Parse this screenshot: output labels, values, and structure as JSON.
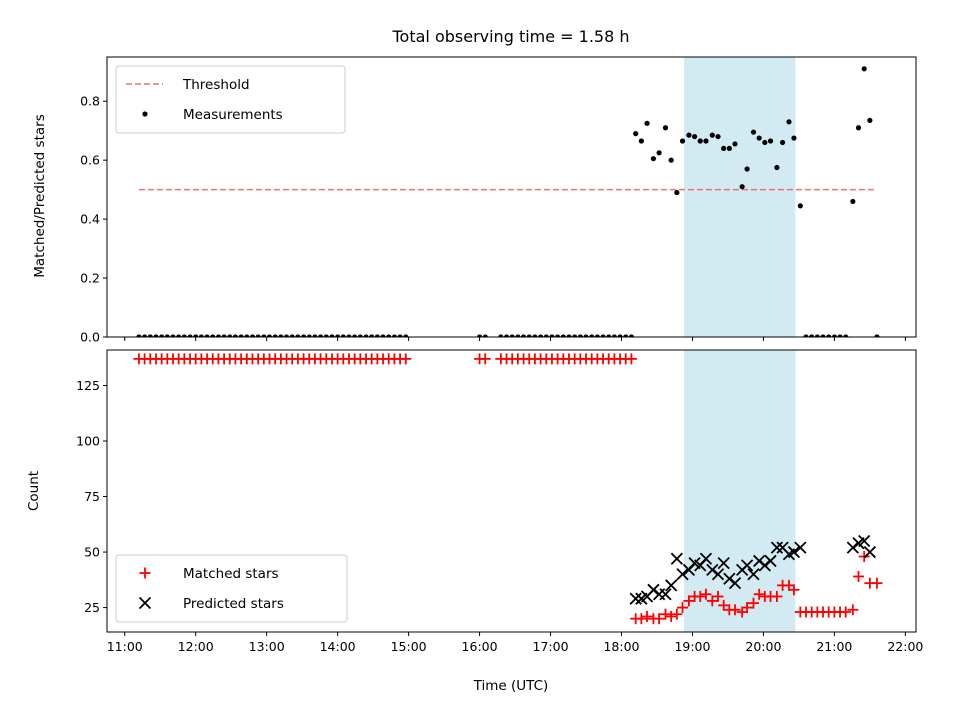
{
  "title": "Total observing time = 1.58 h",
  "xlabel": "Time (UTC)",
  "colors": {
    "threshold": "#f07070",
    "measurement": "#000000",
    "matched": "#ff0000",
    "predicted": "#000000",
    "shade": "#add8e6"
  },
  "chart_data": [
    {
      "type": "scatter",
      "panel": "top",
      "ylabel": "Matched/Predicted stars",
      "xlim": [
        10.75,
        22.15
      ],
      "ylim": [
        0,
        0.95
      ],
      "yticks": [
        0.0,
        0.2,
        0.4,
        0.6,
        0.8
      ],
      "ytick_labels": [
        "0.0",
        "0.2",
        "0.4",
        "0.6",
        "0.8"
      ],
      "xticks": [
        11,
        12,
        13,
        14,
        15,
        16,
        17,
        18,
        19,
        20,
        21,
        22
      ],
      "shaded_interval": [
        18.88,
        20.45
      ],
      "legend_position": "top-left",
      "series": [
        {
          "name": "Threshold",
          "type": "line",
          "style": "dashed",
          "x": [
            11.2,
            21.6
          ],
          "y": [
            0.5,
            0.5
          ]
        },
        {
          "name": "Measurements",
          "type": "scatter",
          "x": [],
          "y": [],
          "points": [
            [
              11.2,
              0
            ],
            [
              11.28,
              0
            ],
            [
              11.36,
              0
            ],
            [
              11.44,
              0
            ],
            [
              11.52,
              0
            ],
            [
              11.6,
              0
            ],
            [
              11.68,
              0
            ],
            [
              11.76,
              0
            ],
            [
              11.84,
              0
            ],
            [
              11.92,
              0
            ],
            [
              12.0,
              0
            ],
            [
              12.08,
              0
            ],
            [
              12.16,
              0
            ],
            [
              12.24,
              0
            ],
            [
              12.32,
              0
            ],
            [
              12.4,
              0
            ],
            [
              12.48,
              0
            ],
            [
              12.56,
              0
            ],
            [
              12.64,
              0
            ],
            [
              12.72,
              0
            ],
            [
              12.8,
              0
            ],
            [
              12.88,
              0
            ],
            [
              12.96,
              0
            ],
            [
              13.04,
              0
            ],
            [
              13.12,
              0
            ],
            [
              13.2,
              0
            ],
            [
              13.28,
              0
            ],
            [
              13.36,
              0
            ],
            [
              13.44,
              0
            ],
            [
              13.52,
              0
            ],
            [
              13.6,
              0
            ],
            [
              13.68,
              0
            ],
            [
              13.76,
              0
            ],
            [
              13.84,
              0
            ],
            [
              13.92,
              0
            ],
            [
              14.0,
              0
            ],
            [
              14.08,
              0
            ],
            [
              14.16,
              0
            ],
            [
              14.24,
              0
            ],
            [
              14.32,
              0
            ],
            [
              14.4,
              0
            ],
            [
              14.48,
              0
            ],
            [
              14.56,
              0
            ],
            [
              14.64,
              0
            ],
            [
              14.72,
              0
            ],
            [
              14.8,
              0
            ],
            [
              14.88,
              0
            ],
            [
              14.96,
              0
            ],
            [
              16.0,
              0
            ],
            [
              16.08,
              0
            ],
            [
              16.3,
              0
            ],
            [
              16.38,
              0
            ],
            [
              16.46,
              0
            ],
            [
              16.54,
              0
            ],
            [
              16.62,
              0
            ],
            [
              16.7,
              0
            ],
            [
              16.78,
              0
            ],
            [
              16.86,
              0
            ],
            [
              16.94,
              0
            ],
            [
              17.02,
              0
            ],
            [
              17.1,
              0
            ],
            [
              17.18,
              0
            ],
            [
              17.26,
              0
            ],
            [
              17.34,
              0
            ],
            [
              17.42,
              0
            ],
            [
              17.5,
              0
            ],
            [
              17.58,
              0
            ],
            [
              17.66,
              0
            ],
            [
              17.74,
              0
            ],
            [
              17.82,
              0
            ],
            [
              17.9,
              0
            ],
            [
              17.98,
              0
            ],
            [
              18.06,
              0
            ],
            [
              18.14,
              0
            ],
            [
              18.2,
              0.69
            ],
            [
              18.28,
              0.665
            ],
            [
              18.36,
              0.725
            ],
            [
              18.45,
              0.605
            ],
            [
              18.53,
              0.625
            ],
            [
              18.62,
              0.71
            ],
            [
              18.7,
              0.6
            ],
            [
              18.78,
              0.49
            ],
            [
              18.86,
              0.665
            ],
            [
              18.95,
              0.685
            ],
            [
              19.03,
              0.68
            ],
            [
              19.11,
              0.665
            ],
            [
              19.19,
              0.665
            ],
            [
              19.28,
              0.685
            ],
            [
              19.36,
              0.68
            ],
            [
              19.44,
              0.64
            ],
            [
              19.52,
              0.64
            ],
            [
              19.6,
              0.655
            ],
            [
              19.7,
              0.51
            ],
            [
              19.77,
              0.57
            ],
            [
              19.86,
              0.695
            ],
            [
              19.94,
              0.675
            ],
            [
              20.02,
              0.66
            ],
            [
              20.1,
              0.665
            ],
            [
              20.19,
              0.575
            ],
            [
              20.27,
              0.66
            ],
            [
              20.36,
              0.73
            ],
            [
              20.43,
              0.675
            ],
            [
              20.52,
              0.445
            ],
            [
              20.6,
              0
            ],
            [
              20.68,
              0
            ],
            [
              20.76,
              0
            ],
            [
              20.84,
              0
            ],
            [
              20.92,
              0
            ],
            [
              21.0,
              0
            ],
            [
              21.08,
              0
            ],
            [
              21.16,
              0
            ],
            [
              21.26,
              0.46
            ],
            [
              21.34,
              0.71
            ],
            [
              21.42,
              0.91
            ],
            [
              21.5,
              0.735
            ],
            [
              21.6,
              0
            ]
          ]
        }
      ]
    },
    {
      "type": "scatter",
      "panel": "bottom",
      "ylabel": "Count",
      "xlabel": "Time (UTC)",
      "xlim": [
        10.75,
        22.15
      ],
      "ylim": [
        14,
        141
      ],
      "yticks": [
        25,
        50,
        75,
        100,
        125
      ],
      "ytick_labels": [
        "25",
        "50",
        "75",
        "100",
        "125"
      ],
      "xticks": [
        11,
        12,
        13,
        14,
        15,
        16,
        17,
        18,
        19,
        20,
        21,
        22
      ],
      "xtick_labels": [
        "11:00",
        "12:00",
        "13:00",
        "14:00",
        "15:00",
        "16:00",
        "17:00",
        "18:00",
        "19:00",
        "20:00",
        "21:00",
        "22:00"
      ],
      "shaded_interval": [
        18.88,
        20.45
      ],
      "legend_position": "bottom-left",
      "series": [
        {
          "name": "Matched stars",
          "marker": "plus",
          "points_flat_137": [
            11.2,
            11.28,
            11.36,
            11.44,
            11.52,
            11.6,
            11.68,
            11.76,
            11.84,
            11.92,
            12.0,
            12.08,
            12.16,
            12.24,
            12.32,
            12.4,
            12.48,
            12.56,
            12.64,
            12.72,
            12.8,
            12.88,
            12.96,
            13.04,
            13.12,
            13.2,
            13.28,
            13.36,
            13.44,
            13.52,
            13.6,
            13.68,
            13.76,
            13.84,
            13.92,
            14.0,
            14.08,
            14.16,
            14.24,
            14.32,
            14.4,
            14.48,
            14.56,
            14.64,
            14.72,
            14.8,
            14.88,
            14.96,
            16.0,
            16.08,
            16.3,
            16.38,
            16.46,
            16.54,
            16.62,
            16.7,
            16.78,
            16.86,
            16.94,
            17.02,
            17.1,
            17.18,
            17.26,
            17.34,
            17.42,
            17.5,
            17.58,
            17.66,
            17.74,
            17.82,
            17.9,
            17.98,
            18.06,
            18.14
          ],
          "points": [
            [
              18.2,
              20
            ],
            [
              18.28,
              20
            ],
            [
              18.36,
              21
            ],
            [
              18.45,
              20
            ],
            [
              18.53,
              20
            ],
            [
              18.62,
              22
            ],
            [
              18.7,
              21
            ],
            [
              18.78,
              22
            ],
            [
              18.86,
              25
            ],
            [
              18.95,
              28
            ],
            [
              19.03,
              30
            ],
            [
              19.11,
              30
            ],
            [
              19.19,
              31
            ],
            [
              19.28,
              28
            ],
            [
              19.36,
              30
            ],
            [
              19.44,
              26
            ],
            [
              19.52,
              24
            ],
            [
              19.6,
              24
            ],
            [
              19.7,
              23
            ],
            [
              19.77,
              25
            ],
            [
              19.86,
              27
            ],
            [
              19.94,
              31
            ],
            [
              20.02,
              30
            ],
            [
              20.1,
              30
            ],
            [
              20.19,
              30
            ],
            [
              20.27,
              35
            ],
            [
              20.36,
              35
            ],
            [
              20.43,
              33
            ],
            [
              20.52,
              23
            ],
            [
              20.6,
              23
            ],
            [
              20.68,
              23
            ],
            [
              20.76,
              23
            ],
            [
              20.84,
              23
            ],
            [
              20.92,
              23
            ],
            [
              21.0,
              23
            ],
            [
              21.08,
              23
            ],
            [
              21.16,
              23
            ],
            [
              21.26,
              24
            ],
            [
              21.34,
              39
            ],
            [
              21.42,
              48
            ],
            [
              21.5,
              36
            ],
            [
              21.6,
              36
            ]
          ]
        },
        {
          "name": "Predicted stars",
          "marker": "x",
          "points": [
            [
              18.2,
              29
            ],
            [
              18.28,
              29
            ],
            [
              18.36,
              30
            ],
            [
              18.45,
              33
            ],
            [
              18.53,
              31
            ],
            [
              18.62,
              31
            ],
            [
              18.7,
              35
            ],
            [
              18.78,
              47
            ],
            [
              18.86,
              40
            ],
            [
              18.95,
              42
            ],
            [
              19.03,
              45
            ],
            [
              19.11,
              44
            ],
            [
              19.19,
              47
            ],
            [
              19.28,
              42
            ],
            [
              19.36,
              40
            ],
            [
              19.44,
              45
            ],
            [
              19.52,
              38
            ],
            [
              19.6,
              36
            ],
            [
              19.7,
              42
            ],
            [
              19.77,
              44
            ],
            [
              19.86,
              40
            ],
            [
              19.94,
              46
            ],
            [
              20.02,
              44
            ],
            [
              20.1,
              46
            ],
            [
              20.19,
              52
            ],
            [
              20.27,
              52
            ],
            [
              20.36,
              49
            ],
            [
              20.43,
              50
            ],
            [
              20.52,
              52
            ],
            [
              21.26,
              52
            ],
            [
              21.34,
              54
            ],
            [
              21.42,
              55
            ],
            [
              21.5,
              50
            ]
          ]
        }
      ]
    }
  ]
}
